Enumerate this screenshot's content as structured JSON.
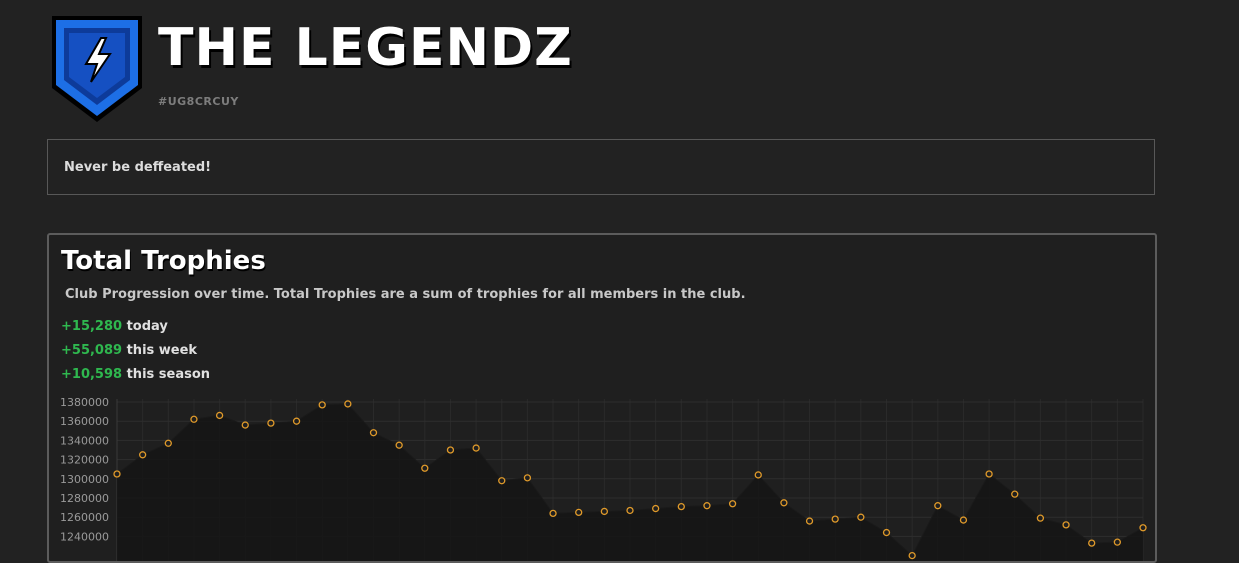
{
  "club": {
    "name": "THE LEGENDZ",
    "tag": "#UG8CRCUY",
    "description": "Never be deffeated!"
  },
  "trophies": {
    "title": "Total Trophies",
    "subtitle": "Club Progression over time. Total Trophies are a sum of trophies for all members in the club.",
    "stats": [
      {
        "value": "+15,280",
        "label": "today"
      },
      {
        "value": "+55,089",
        "label": "this week"
      },
      {
        "value": "+10,598",
        "label": "this season"
      }
    ]
  },
  "colors": {
    "background": "#222222",
    "accent_green": "#2fb84f",
    "point_orange": "#e09a2a",
    "badge_blue": "#1d6fe6"
  },
  "chart_data": {
    "type": "line",
    "title": "",
    "xlabel": "",
    "ylabel": "",
    "ylim": [
      1230000,
      1385000
    ],
    "yticks": [
      "1380000",
      "1360000",
      "1340000",
      "1320000",
      "1300000",
      "1280000",
      "1260000",
      "1240000"
    ],
    "ytick_values": [
      1380000,
      1360000,
      1340000,
      1320000,
      1300000,
      1280000,
      1260000,
      1240000
    ],
    "series": [
      {
        "values": [
          1305000,
          1325000,
          1337000,
          1362000,
          1366000,
          1356000,
          1358000,
          1360000,
          1377000,
          1378000,
          1348000,
          1335000,
          1311000,
          1330000,
          1332000,
          1298000,
          1301000,
          1264000,
          1265000,
          1266000,
          1267000,
          1269000,
          1271000,
          1272000,
          1274000,
          1304000,
          1275000,
          1256000,
          1258000,
          1260000,
          1244000,
          1220000,
          1272000,
          1257000,
          1305000,
          1284000,
          1259000,
          1252000,
          1233000,
          1234000,
          1249000
        ]
      }
    ]
  }
}
